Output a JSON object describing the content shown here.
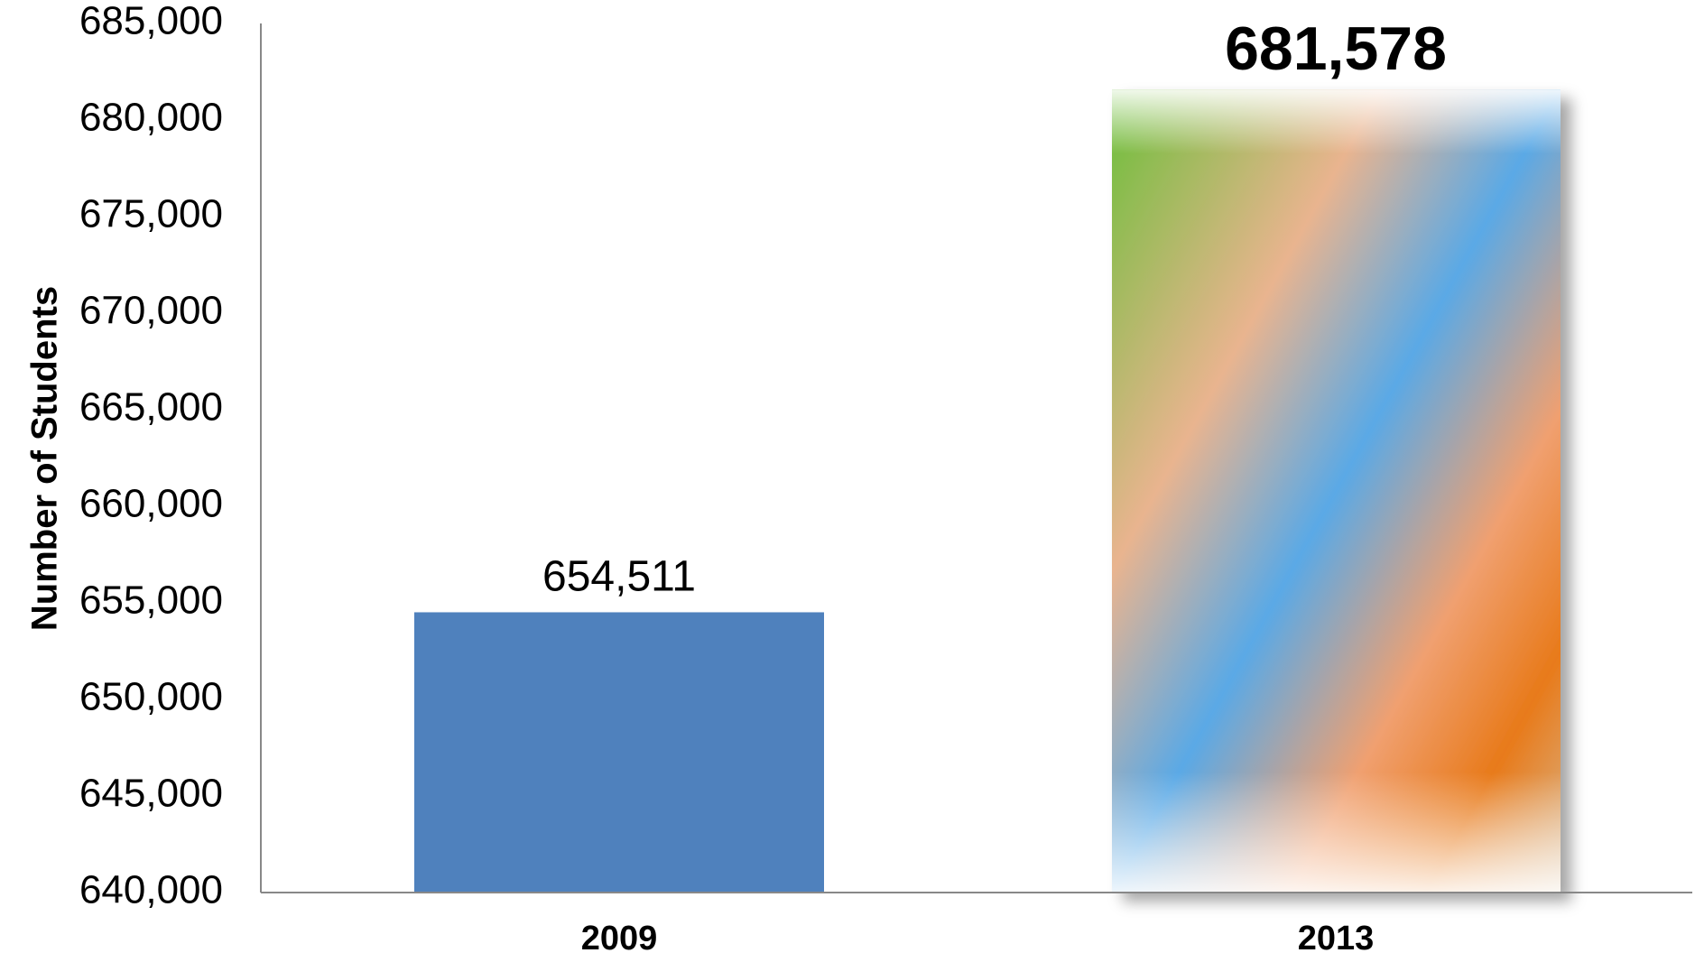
{
  "chart_data": {
    "type": "bar",
    "y_label": "Number of Students",
    "categories": [
      "2009",
      "2013"
    ],
    "values": [
      654511,
      681578
    ],
    "value_labels": [
      "654,511",
      "681,578"
    ],
    "color": "#4f81bd",
    "ylim": [
      640000,
      685000
    ],
    "yticks": [
      {
        "value": 640000,
        "label": "640,000"
      },
      {
        "value": 645000,
        "label": "645,000"
      },
      {
        "value": 650000,
        "label": "650,000"
      },
      {
        "value": 655000,
        "label": "655,000"
      },
      {
        "value": 660000,
        "label": "660,000"
      },
      {
        "value": 665000,
        "label": "665,000"
      },
      {
        "value": 670000,
        "label": "670,000"
      },
      {
        "value": 675000,
        "label": "675,000"
      },
      {
        "value": 680000,
        "label": "680,000"
      },
      {
        "value": 685000,
        "label": "685,000"
      }
    ]
  }
}
